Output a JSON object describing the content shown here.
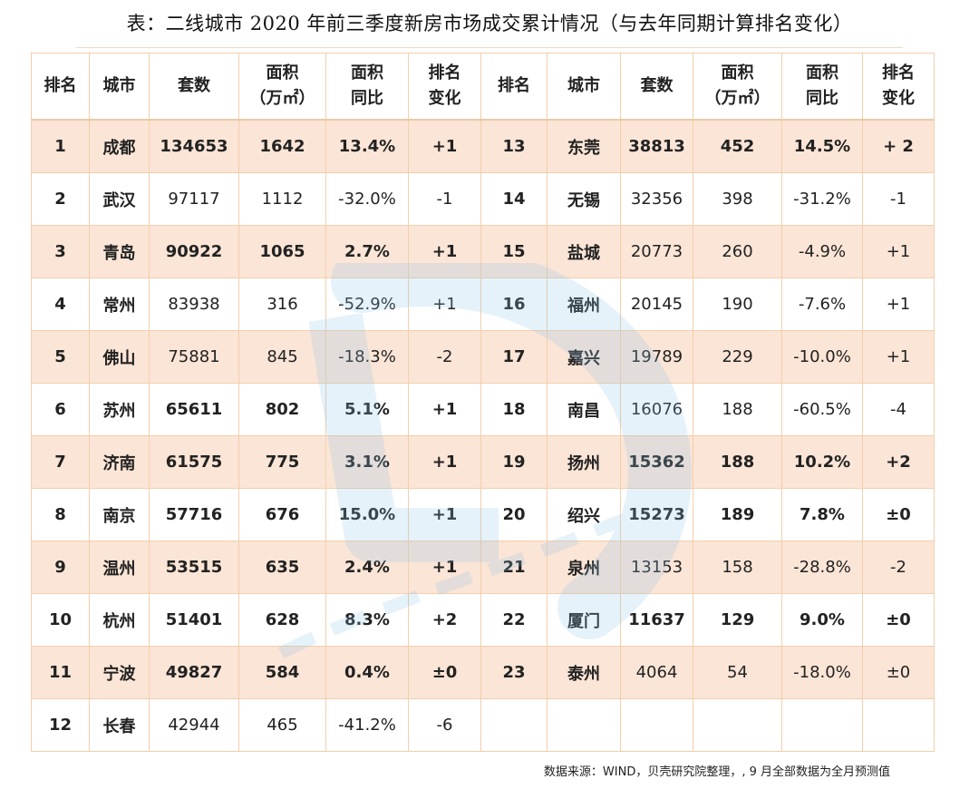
{
  "title": "表：二线城市 2020 年前三季度新房市场成交累计情况（与去年同期计算排名变化）",
  "headers": {
    "rank": "排名",
    "city": "城市",
    "units": "套数",
    "area_l1": "面积",
    "area_l2": "（万㎡）",
    "yoy_l1": "面积",
    "yoy_l2": "同比",
    "chg_l1": "排名",
    "chg_l2": "变化"
  },
  "left_rows": [
    {
      "rank": "1",
      "city": "成都",
      "units": "134653",
      "area": "1642",
      "yoy": "13.4%",
      "change": "+1",
      "bold": true
    },
    {
      "rank": "2",
      "city": "武汉",
      "units": "97117",
      "area": "1112",
      "yoy": "-32.0%",
      "change": "-1",
      "bold": false
    },
    {
      "rank": "3",
      "city": "青岛",
      "units": "90922",
      "area": "1065",
      "yoy": "2.7%",
      "change": "+1",
      "bold": true
    },
    {
      "rank": "4",
      "city": "常州",
      "units": "83938",
      "area": "316",
      "yoy": "-52.9%",
      "change": "+1",
      "bold": false
    },
    {
      "rank": "5",
      "city": "佛山",
      "units": "75881",
      "area": "845",
      "yoy": "-18.3%",
      "change": "-2",
      "bold": false
    },
    {
      "rank": "6",
      "city": "苏州",
      "units": "65611",
      "area": "802",
      "yoy": "5.1%",
      "change": "+1",
      "bold": true
    },
    {
      "rank": "7",
      "city": "济南",
      "units": "61575",
      "area": "775",
      "yoy": "3.1%",
      "change": "+1",
      "bold": true
    },
    {
      "rank": "8",
      "city": "南京",
      "units": "57716",
      "area": "676",
      "yoy": "15.0%",
      "change": "+1",
      "bold": true
    },
    {
      "rank": "9",
      "city": "温州",
      "units": "53515",
      "area": "635",
      "yoy": "2.4%",
      "change": "+1",
      "bold": true
    },
    {
      "rank": "10",
      "city": "杭州",
      "units": "51401",
      "area": "628",
      "yoy": "8.3%",
      "change": "+2",
      "bold": true
    },
    {
      "rank": "11",
      "city": "宁波",
      "units": "49827",
      "area": "584",
      "yoy": "0.4%",
      "change": "±0",
      "bold": true
    },
    {
      "rank": "12",
      "city": "长春",
      "units": "42944",
      "area": "465",
      "yoy": "-41.2%",
      "change": "-6",
      "bold": false
    }
  ],
  "right_rows": [
    {
      "rank": "13",
      "city": "东莞",
      "units": "38813",
      "area": "452",
      "yoy": "14.5%",
      "change": "+ 2",
      "bold": true
    },
    {
      "rank": "14",
      "city": "无锡",
      "units": "32356",
      "area": "398",
      "yoy": "-31.2%",
      "change": "-1",
      "bold": false
    },
    {
      "rank": "15",
      "city": "盐城",
      "units": "20773",
      "area": "260",
      "yoy": "-4.9%",
      "change": "+1",
      "bold": false
    },
    {
      "rank": "16",
      "city": "福州",
      "units": "20145",
      "area": "190",
      "yoy": "-7.6%",
      "change": "+1",
      "bold": false
    },
    {
      "rank": "17",
      "city": "嘉兴",
      "units": "19789",
      "area": "229",
      "yoy": "-10.0%",
      "change": "+1",
      "bold": false
    },
    {
      "rank": "18",
      "city": "南昌",
      "units": "16076",
      "area": "188",
      "yoy": "-60.5%",
      "change": "-4",
      "bold": false
    },
    {
      "rank": "19",
      "city": "扬州",
      "units": "15362",
      "area": "188",
      "yoy": "10.2%",
      "change": "+2",
      "bold": true
    },
    {
      "rank": "20",
      "city": "绍兴",
      "units": "15273",
      "area": "189",
      "yoy": "7.8%",
      "change": "±0",
      "bold": true
    },
    {
      "rank": "21",
      "city": "泉州",
      "units": "13153",
      "area": "158",
      "yoy": "-28.8%",
      "change": "-2",
      "bold": false
    },
    {
      "rank": "22",
      "city": "厦门",
      "units": "11637",
      "area": "129",
      "yoy": "9.0%",
      "change": "±0",
      "bold": true
    },
    {
      "rank": "23",
      "city": "泰州",
      "units": "4064",
      "area": "54",
      "yoy": "-18.0%",
      "change": "±0",
      "bold": false
    },
    {
      "rank": "",
      "city": "",
      "units": "",
      "area": "",
      "yoy": "",
      "change": "",
      "bold": false
    }
  ],
  "footer": "数据来源：WIND，贝壳研究院整理，, 9 月全部数据为全月预测值",
  "watermark": {
    "icon": "beike-logo-watermark",
    "color": "#8ec5e8",
    "text": "贝壳研究院"
  },
  "colors": {
    "row_shade": "#fbe5d6",
    "border": "#f2cfac"
  }
}
